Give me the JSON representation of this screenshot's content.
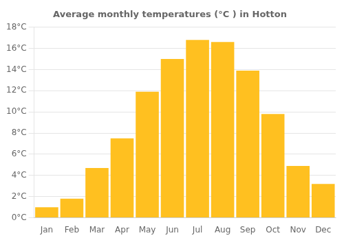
{
  "chart_data": {
    "type": "bar",
    "title": "Average monthly temperatures (°C ) in Hotton",
    "categories": [
      "Jan",
      "Feb",
      "Mar",
      "Apr",
      "May",
      "Jun",
      "Jul",
      "Aug",
      "Sep",
      "Oct",
      "Nov",
      "Dec"
    ],
    "values": [
      1.0,
      1.8,
      4.7,
      7.5,
      11.9,
      15.0,
      16.8,
      16.6,
      13.9,
      9.8,
      4.9,
      3.2
    ],
    "color": "#FFC020",
    "ylim": [
      0,
      18
    ],
    "yticks": [
      {
        "value": 0,
        "label": "0°C"
      },
      {
        "value": 2,
        "label": "2°C"
      },
      {
        "value": 4,
        "label": "4°C"
      },
      {
        "value": 6,
        "label": "6°C"
      },
      {
        "value": 8,
        "label": "8°C"
      },
      {
        "value": 10,
        "label": "10°C"
      },
      {
        "value": 12,
        "label": "12°C"
      },
      {
        "value": 14,
        "label": "14°C"
      },
      {
        "value": 16,
        "label": "16°C"
      },
      {
        "value": 18,
        "label": "18°C"
      }
    ],
    "grid": true
  }
}
